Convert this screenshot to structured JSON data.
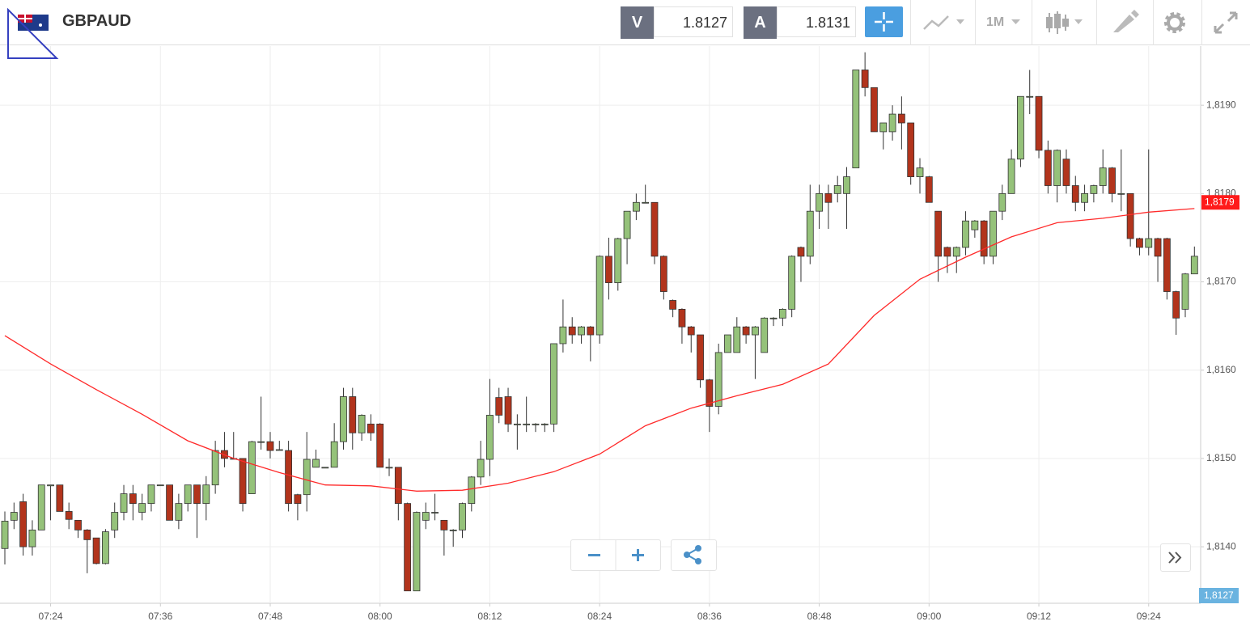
{
  "chart_data": {
    "type": "candlestick",
    "title": "GBPAUD",
    "categories": [
      null,
      null,
      null,
      null,
      null,
      "07:24",
      null,
      null,
      null,
      null,
      null,
      null,
      null,
      null,
      null,
      null,
      null,
      "07:36",
      null,
      null,
      null,
      null,
      null,
      null,
      null,
      null,
      null,
      null,
      null,
      "07:48",
      null,
      null,
      null,
      null,
      null,
      null,
      null,
      null,
      null,
      null,
      null,
      "08:00",
      null,
      null,
      null,
      null,
      null,
      null,
      null,
      null,
      null,
      null,
      null,
      "08:12",
      null,
      null,
      null,
      null,
      null,
      null,
      null,
      null,
      null,
      null,
      null,
      "08:24",
      null,
      null,
      null,
      null,
      null,
      null,
      null,
      null,
      null,
      null,
      null,
      "08:36",
      null,
      null,
      null,
      null,
      null,
      null,
      null,
      null,
      null,
      null,
      null,
      "08:48",
      null,
      null,
      null,
      null,
      null,
      null,
      null,
      null,
      null,
      null,
      null,
      "09:00",
      null,
      null,
      null,
      null,
      null,
      null,
      null,
      null,
      null,
      null,
      null,
      "09:12",
      null,
      null,
      null,
      null,
      null,
      null,
      null,
      null,
      null,
      null,
      null,
      "09:24",
      null,
      null,
      null,
      null,
      null
    ],
    "open": [
      1.81398,
      1.8143,
      1.81451,
      1.814,
      1.81419,
      1.81469,
      1.8147,
      1.8144,
      1.8143,
      1.81419,
      1.8141,
      1.81381,
      1.81419,
      1.81439,
      1.8146,
      1.81439,
      1.81449,
      1.8147,
      1.8147,
      1.8143,
      1.81449,
      1.8147,
      1.81449,
      1.8147,
      1.81509,
      1.815,
      1.815,
      1.8146,
      1.81519,
      1.81519,
      1.8151,
      1.81509,
      1.81459,
      1.81459,
      1.8149,
      1.8149,
      1.8149,
      1.81519,
      1.8157,
      1.81529,
      1.81539,
      1.81539,
      1.8149,
      1.8149,
      1.81449,
      1.8135,
      1.8143,
      1.81439,
      1.8143,
      1.81419,
      1.81419,
      1.81449,
      1.81479,
      1.81499,
      1.81569,
      1.8157,
      1.81539,
      1.81539,
      1.81539,
      1.81539,
      1.81539,
      1.8163,
      1.81649,
      1.8164,
      1.81649,
      1.8164,
      1.81729,
      1.81699,
      1.81749,
      1.8178,
      1.8179,
      1.8179,
      1.81729,
      1.81679,
      1.81669,
      1.81649,
      1.8164,
      1.81589,
      1.81559,
      1.8162,
      1.8162,
      1.81649,
      1.8164,
      1.8162,
      1.81659,
      1.81659,
      1.81669,
      1.81739,
      1.81729,
      1.8178,
      1.818,
      1.818,
      1.818,
      1.81829,
      1.8194,
      1.8192,
      1.8187,
      1.8187,
      1.8189,
      1.8188,
      1.81819,
      1.81819,
      1.8178,
      1.81739,
      1.81729,
      1.81739,
      1.81759,
      1.81769,
      1.81729,
      1.8178,
      1.818,
      1.81839,
      1.8191,
      1.8191,
      1.81849,
      1.81809,
      1.81839,
      1.81809,
      1.8179,
      1.818,
      1.81809,
      1.81829,
      1.818,
      1.818,
      1.81749,
      1.81739,
      1.81749,
      1.81749,
      1.81689,
      1.81669,
      1.81709
    ],
    "high": [
      1.8144,
      1.8145,
      1.8146,
      1.8143,
      1.8147,
      1.8147,
      1.8147,
      1.8145,
      1.8143,
      1.8142,
      1.8141,
      1.8142,
      1.8145,
      1.8147,
      1.8147,
      1.8146,
      1.8147,
      1.8147,
      1.8147,
      1.8146,
      1.8147,
      1.8147,
      1.8148,
      1.8152,
      1.8153,
      1.8153,
      1.815,
      1.8152,
      1.8157,
      1.8153,
      1.8152,
      1.8152,
      1.8146,
      1.8153,
      1.8151,
      1.8149,
      1.8154,
      1.8158,
      1.8158,
      1.8155,
      1.8155,
      1.8154,
      1.815,
      1.8149,
      1.8145,
      1.8144,
      1.8145,
      1.8146,
      1.8143,
      1.8142,
      1.8145,
      1.8148,
      1.8152,
      1.8159,
      1.8158,
      1.8158,
      1.8155,
      1.8157,
      1.8154,
      1.8154,
      1.8163,
      1.8168,
      1.8166,
      1.8165,
      1.8165,
      1.8173,
      1.8175,
      1.8175,
      1.8178,
      1.818,
      1.8181,
      1.8179,
      1.8173,
      1.8168,
      1.8167,
      1.8165,
      1.8164,
      1.8159,
      1.8163,
      1.8164,
      1.8166,
      1.8165,
      1.8165,
      1.8166,
      1.8166,
      1.8167,
      1.8173,
      1.8174,
      1.8181,
      1.8181,
      1.8181,
      1.8182,
      1.8183,
      1.8194,
      1.8196,
      1.8192,
      1.8188,
      1.819,
      1.8191,
      1.8188,
      1.8184,
      1.8182,
      1.8178,
      1.8174,
      1.8174,
      1.8178,
      1.8177,
      1.8177,
      1.8178,
      1.8181,
      1.8185,
      1.8191,
      1.8194,
      1.8191,
      1.8186,
      1.8185,
      1.8185,
      1.8182,
      1.8181,
      1.8181,
      1.8185,
      1.8183,
      1.8185,
      1.818,
      1.8175,
      1.8185,
      1.8175,
      1.8175,
      1.8169,
      1.8171,
      1.8174
    ],
    "low": [
      1.8138,
      1.8142,
      1.8139,
      1.8139,
      1.8142,
      1.8143,
      1.8144,
      1.8142,
      1.8141,
      1.8137,
      1.8138,
      1.8138,
      1.8141,
      1.8143,
      1.8143,
      1.8143,
      1.8144,
      1.8147,
      1.8143,
      1.8142,
      1.8144,
      1.8141,
      1.8143,
      1.8146,
      1.8149,
      1.815,
      1.8144,
      1.8146,
      1.8151,
      1.815,
      1.8151,
      1.8144,
      1.8143,
      1.8144,
      1.8149,
      1.8149,
      1.8149,
      1.8151,
      1.8151,
      1.8152,
      1.8152,
      1.8149,
      1.8148,
      1.8143,
      1.8135,
      1.8135,
      1.8142,
      1.8143,
      1.8139,
      1.814,
      1.8141,
      1.8144,
      1.8147,
      1.8148,
      1.8154,
      1.8153,
      1.8151,
      1.8153,
      1.8153,
      1.8153,
      1.8153,
      1.8162,
      1.8163,
      1.8163,
      1.8161,
      1.8163,
      1.8168,
      1.8169,
      1.8172,
      1.8177,
      1.8179,
      1.8172,
      1.8168,
      1.8166,
      1.8163,
      1.8162,
      1.8158,
      1.8153,
      1.8155,
      1.8162,
      1.8162,
      1.8163,
      1.8159,
      1.8162,
      1.8165,
      1.8165,
      1.8166,
      1.817,
      1.8172,
      1.8176,
      1.8176,
      1.8179,
      1.8176,
      1.8183,
      1.8191,
      1.8187,
      1.8185,
      1.8186,
      1.8185,
      1.8181,
      1.818,
      1.8179,
      1.817,
      1.8171,
      1.8171,
      1.8173,
      1.8175,
      1.8172,
      1.8172,
      1.8177,
      1.818,
      1.8183,
      1.8189,
      1.8184,
      1.818,
      1.8179,
      1.818,
      1.8178,
      1.8178,
      1.8179,
      1.818,
      1.8179,
      1.8178,
      1.8174,
      1.8173,
      1.8173,
      1.817,
      1.8168,
      1.8164,
      1.8166,
      1.8171
    ],
    "close": [
      1.81429,
      1.81439,
      1.814,
      1.81419,
      1.8147,
      1.8147,
      1.8144,
      1.81431,
      1.81419,
      1.81408,
      1.81381,
      1.81417,
      1.81439,
      1.8146,
      1.81449,
      1.81449,
      1.8147,
      1.8147,
      1.8143,
      1.81449,
      1.8147,
      1.81449,
      1.8147,
      1.81509,
      1.815,
      1.815,
      1.81449,
      1.81519,
      1.81519,
      1.81509,
      1.8151,
      1.81449,
      1.81449,
      1.81499,
      1.81499,
      1.8149,
      1.81519,
      1.8157,
      1.81529,
      1.81549,
      1.81529,
      1.8149,
      1.8149,
      1.81449,
      1.8135,
      1.81439,
      1.81439,
      1.81439,
      1.81419,
      1.81419,
      1.81449,
      1.81479,
      1.81499,
      1.81549,
      1.81549,
      1.81539,
      1.81539,
      1.81539,
      1.81539,
      1.81539,
      1.8163,
      1.81649,
      1.8164,
      1.81649,
      1.8164,
      1.81729,
      1.81699,
      1.81749,
      1.8178,
      1.8179,
      1.8179,
      1.81729,
      1.81689,
      1.81669,
      1.81649,
      1.8164,
      1.81589,
      1.81559,
      1.8162,
      1.8164,
      1.81649,
      1.8164,
      1.81649,
      1.81659,
      1.81659,
      1.81669,
      1.81729,
      1.81729,
      1.8178,
      1.818,
      1.8179,
      1.81809,
      1.81819,
      1.8194,
      1.8192,
      1.8187,
      1.8188,
      1.8189,
      1.8188,
      1.81819,
      1.81829,
      1.8179,
      1.81729,
      1.81729,
      1.81739,
      1.81769,
      1.81769,
      1.81729,
      1.8178,
      1.818,
      1.81839,
      1.8191,
      1.8191,
      1.81849,
      1.81809,
      1.81849,
      1.81809,
      1.8179,
      1.818,
      1.81809,
      1.81829,
      1.818,
      1.818,
      1.81749,
      1.81739,
      1.81749,
      1.81729,
      1.81689,
      1.81659,
      1.81709,
      1.81729
    ],
    "up_color": "#95c27a",
    "down_color": "#b2341c",
    "lines": [
      {
        "color": "#ff2a2a",
        "x": [
          0,
          5,
          10,
          15,
          20,
          25,
          30,
          35,
          40,
          45,
          50,
          55,
          60,
          65,
          70,
          75,
          80,
          85,
          90,
          95,
          100,
          105,
          110,
          115,
          120,
          125,
          130
        ],
        "values": [
          1.81639,
          1.81607,
          1.81578,
          1.8155,
          1.8152,
          1.815,
          1.81484,
          1.8147,
          1.81469,
          1.81463,
          1.81464,
          1.81472,
          1.81485,
          1.81505,
          1.81537,
          1.81557,
          1.81571,
          1.81584,
          1.81607,
          1.81662,
          1.81703,
          1.81728,
          1.81751,
          1.81767,
          1.81772,
          1.81779,
          1.81783
        ]
      }
    ],
    "ylim": [
      1.81336,
      1.81967
    ],
    "yticks": [
      {
        "value": 1.814,
        "label": "1,8140"
      },
      {
        "value": 1.815,
        "label": "1,8150"
      },
      {
        "value": 1.816,
        "label": "1,8160"
      },
      {
        "value": 1.817,
        "label": "1,8170"
      },
      {
        "value": 1.818,
        "label": "1,8180"
      },
      {
        "value": 1.819,
        "label": "1,8190"
      }
    ],
    "grid": true,
    "last_price": {
      "value": 1.8179,
      "label": "1,8179",
      "color": "#ff1a1a"
    },
    "bottom_price_label": "1,8127"
  },
  "toolbar": {
    "sell_label": "V",
    "sell_price": "1.8127",
    "buy_label": "A",
    "buy_price": "1.8131",
    "timeframe": "1M"
  }
}
